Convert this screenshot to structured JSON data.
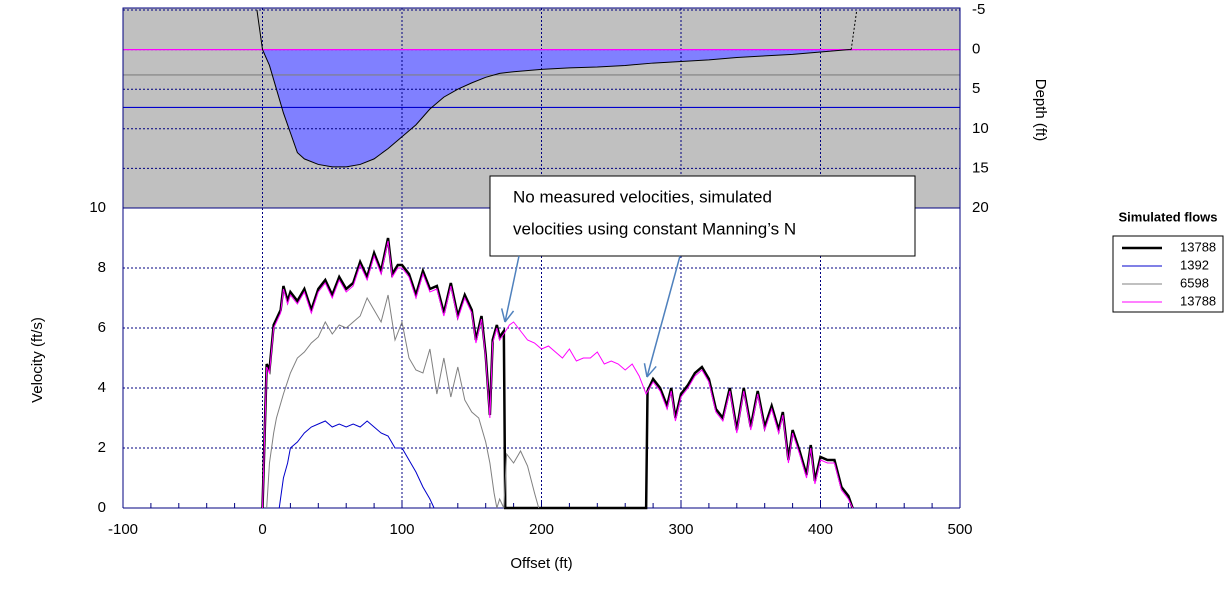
{
  "chart_data": [
    {
      "type": "area",
      "ylabel": "Depth (ft)",
      "ylim": [
        -5,
        20
      ],
      "yticks": [
        -5,
        0,
        5,
        10,
        15,
        20
      ],
      "y_inverted": true,
      "yaxis_side": "right",
      "background": "#c0c0c0",
      "color": "#8080ff",
      "grid": true,
      "x": [
        -4,
        0,
        5,
        10,
        15,
        20,
        25,
        30,
        40,
        50,
        60,
        70,
        80,
        90,
        100,
        110,
        120,
        130,
        140,
        150,
        160,
        170,
        180,
        200,
        220,
        240,
        260,
        280,
        300,
        320,
        340,
        360,
        380,
        400,
        420,
        422,
        426
      ],
      "values": [
        -5,
        0,
        2,
        5,
        8,
        10.5,
        13,
        13.8,
        14.5,
        14.8,
        14.8,
        14.5,
        13.8,
        12.5,
        11,
        9.5,
        7.5,
        6,
        5,
        4.2,
        3.5,
        3,
        2.8,
        2.5,
        2.3,
        2.2,
        2,
        1.7,
        1.5,
        1.3,
        1,
        0.8,
        0.6,
        0.3,
        0,
        0,
        -5
      ],
      "water_surfaces": [
        {
          "color": "#ff00ff",
          "value": 0
        },
        {
          "color": "#808080",
          "value": 3.2
        },
        {
          "color": "#0000cc",
          "value": 7.3
        }
      ]
    },
    {
      "type": "line",
      "xlabel": "Offset (ft)",
      "ylabel": "Velocity (ft/s)",
      "xlim": [
        -100,
        500
      ],
      "xticks": [
        -100,
        0,
        100,
        200,
        300,
        400,
        500
      ],
      "minor_xticks": [
        -80,
        -60,
        -40,
        -20,
        20,
        40,
        60,
        80,
        120,
        140,
        160,
        180,
        220,
        240,
        260,
        280,
        320,
        340,
        360,
        380,
        420,
        440,
        460,
        480
      ],
      "ylim": [
        0,
        10
      ],
      "yticks": [
        0,
        2,
        4,
        6,
        8,
        10
      ],
      "grid": true,
      "legend_title": "Simulated flows",
      "annotation": [
        "No measured velocities, simulated",
        "velocities using constant Manning’s N"
      ],
      "series": [
        {
          "name": "13788",
          "color": "#000000",
          "width": 2.5,
          "x": [
            0,
            3,
            5,
            8,
            10,
            13,
            15,
            18,
            20,
            25,
            30,
            35,
            40,
            45,
            50,
            55,
            60,
            65,
            70,
            75,
            80,
            85,
            90,
            93,
            97,
            100,
            105,
            110,
            115,
            120,
            125,
            130,
            135,
            140,
            145,
            150,
            153,
            157,
            160,
            163,
            165,
            168,
            170,
            173,
            174,
            275,
            276,
            280,
            285,
            290,
            293,
            296,
            300,
            305,
            310,
            315,
            320,
            325,
            330,
            335,
            340,
            345,
            350,
            355,
            360,
            365,
            370,
            373,
            377,
            380,
            385,
            390,
            393,
            396,
            400,
            405,
            410,
            415,
            420,
            423
          ],
          "values": [
            0,
            4.8,
            4.6,
            6.1,
            6.3,
            6.6,
            7.4,
            6.9,
            7.2,
            6.9,
            7.3,
            6.6,
            7.3,
            7.6,
            7.1,
            7.7,
            7.3,
            7.5,
            8.2,
            7.7,
            8.5,
            7.9,
            9,
            7.8,
            8.1,
            8.1,
            7.8,
            7.1,
            7.9,
            7.3,
            7.4,
            6.5,
            7.5,
            6.4,
            7.1,
            6.6,
            5.6,
            6.4,
            5.1,
            3.1,
            5.6,
            6.1,
            5.7,
            5.9,
            0,
            0,
            3.9,
            4.3,
            4,
            3.4,
            4,
            3,
            3.8,
            4.1,
            4.5,
            4.7,
            4.3,
            3.3,
            3,
            4,
            2.6,
            4,
            2.7,
            3.9,
            2.7,
            3.4,
            2.6,
            3.2,
            1.6,
            2.6,
            1.9,
            1.1,
            2.1,
            0.9,
            1.7,
            1.6,
            1.6,
            0.7,
            0.4,
            0
          ]
        },
        {
          "name": "1392",
          "color": "#0000cc",
          "width": 1,
          "x": [
            12,
            15,
            18,
            20,
            25,
            30,
            35,
            40,
            45,
            50,
            55,
            60,
            65,
            70,
            75,
            80,
            85,
            90,
            95,
            100,
            105,
            110,
            115,
            120,
            123
          ],
          "values": [
            0,
            1,
            1.5,
            2,
            2.2,
            2.5,
            2.7,
            2.8,
            2.9,
            2.7,
            2.8,
            2.7,
            2.8,
            2.7,
            2.9,
            2.7,
            2.5,
            2.4,
            2,
            2,
            1.6,
            1.2,
            0.7,
            0.3,
            0
          ]
        },
        {
          "name": "6598",
          "color": "#808080",
          "width": 1,
          "x": [
            3,
            5,
            8,
            10,
            15,
            20,
            25,
            30,
            35,
            40,
            45,
            50,
            55,
            60,
            65,
            70,
            75,
            80,
            85,
            90,
            95,
            100,
            105,
            110,
            115,
            120,
            125,
            130,
            135,
            140,
            145,
            150,
            155,
            160,
            163,
            166,
            168,
            170,
            173,
            175,
            180,
            185,
            190,
            195,
            198
          ],
          "values": [
            0,
            1.5,
            2.5,
            3,
            3.8,
            4.5,
            5,
            5.2,
            5.5,
            5.7,
            6.2,
            5.8,
            6.1,
            6,
            6.2,
            6.4,
            7,
            6.6,
            6.2,
            7.1,
            5.6,
            6.2,
            5,
            4.6,
            4.5,
            5.3,
            3.8,
            5,
            3.7,
            4.7,
            3.6,
            3.2,
            3,
            2.2,
            1.5,
            0.5,
            0,
            0.3,
            0,
            1.8,
            1.5,
            1.9,
            1.4,
            0.5,
            0
          ]
        },
        {
          "name": "13788",
          "color": "#ff00ff",
          "width": 1,
          "x": [
            0,
            3,
            5,
            8,
            10,
            13,
            15,
            18,
            20,
            25,
            30,
            35,
            40,
            45,
            50,
            55,
            60,
            65,
            70,
            75,
            80,
            85,
            90,
            93,
            97,
            100,
            105,
            110,
            115,
            120,
            125,
            130,
            135,
            140,
            145,
            150,
            153,
            157,
            160,
            163,
            165,
            168,
            170,
            173,
            177,
            180,
            185,
            190,
            195,
            200,
            205,
            210,
            215,
            220,
            225,
            230,
            235,
            240,
            245,
            250,
            255,
            260,
            265,
            270,
            275,
            280,
            285,
            290,
            293,
            296,
            300,
            305,
            310,
            315,
            320,
            325,
            330,
            335,
            340,
            345,
            350,
            355,
            360,
            365,
            370,
            373,
            377,
            380,
            385,
            390,
            393,
            396,
            400,
            405,
            410,
            415,
            420,
            423
          ],
          "values": [
            0,
            4.7,
            4.5,
            6,
            6.2,
            6.5,
            7.3,
            6.8,
            7.1,
            6.8,
            7.2,
            6.5,
            7.2,
            7.5,
            7,
            7.6,
            7.2,
            7.4,
            8.1,
            7.6,
            8.4,
            7.8,
            8.9,
            7.7,
            8,
            8,
            7.7,
            7,
            7.8,
            7.2,
            7.3,
            6.4,
            7.4,
            6.3,
            7,
            6.5,
            5.5,
            6.3,
            5,
            3,
            5.5,
            6,
            5.6,
            5.8,
            6.1,
            6.2,
            5.9,
            5.6,
            5.5,
            5.3,
            5.4,
            5.2,
            5,
            5.3,
            4.9,
            5,
            5,
            5.2,
            4.8,
            4.9,
            4.8,
            4.6,
            4.8,
            4.4,
            3.8,
            4.2,
            3.9,
            3.3,
            3.9,
            2.9,
            3.7,
            4,
            4.4,
            4.6,
            4.2,
            3.2,
            2.9,
            3.9,
            2.5,
            3.9,
            2.6,
            3.8,
            2.6,
            3.3,
            2.5,
            3.1,
            1.5,
            2.5,
            1.8,
            1,
            2,
            0.8,
            1.6,
            1.5,
            1.5,
            0.6,
            0.3,
            0
          ]
        }
      ]
    }
  ]
}
